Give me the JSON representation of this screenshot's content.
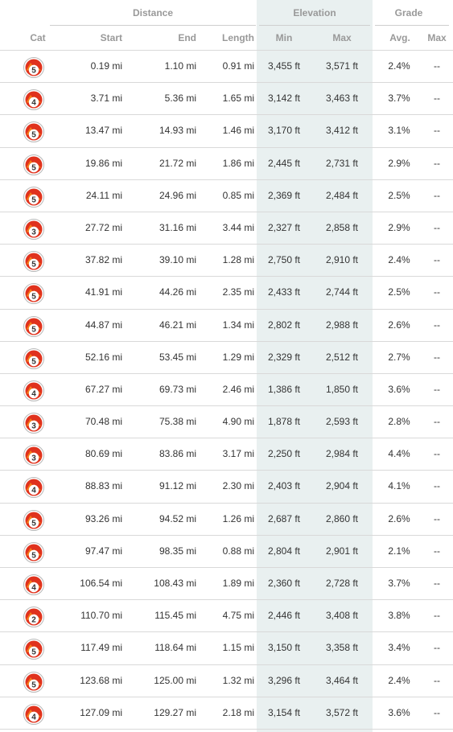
{
  "groups": {
    "distance": "Distance",
    "elevation": "Elevation",
    "grade": "Grade"
  },
  "columns": {
    "cat": "Cat",
    "start": "Start",
    "end": "End",
    "length": "Length",
    "min": "Min",
    "max": "Max",
    "avg": "Avg.",
    "grade_max": "Max"
  },
  "colors": {
    "elevation_bg": "#e9f0f0",
    "badge_red": "#e0321d",
    "badge_orange": "#f47a17"
  },
  "rows": [
    {
      "cat": "5",
      "start": "0.19 mi",
      "end": "1.10 mi",
      "length": "0.91 mi",
      "min": "3,455 ft",
      "max": "3,571 ft",
      "avg": "2.4%",
      "gmax": "--"
    },
    {
      "cat": "4",
      "start": "3.71 mi",
      "end": "5.36 mi",
      "length": "1.65 mi",
      "min": "3,142 ft",
      "max": "3,463 ft",
      "avg": "3.7%",
      "gmax": "--"
    },
    {
      "cat": "5",
      "start": "13.47 mi",
      "end": "14.93 mi",
      "length": "1.46 mi",
      "min": "3,170 ft",
      "max": "3,412 ft",
      "avg": "3.1%",
      "gmax": "--"
    },
    {
      "cat": "5",
      "start": "19.86 mi",
      "end": "21.72 mi",
      "length": "1.86 mi",
      "min": "2,445 ft",
      "max": "2,731 ft",
      "avg": "2.9%",
      "gmax": "--"
    },
    {
      "cat": "5",
      "start": "24.11 mi",
      "end": "24.96 mi",
      "length": "0.85 mi",
      "min": "2,369 ft",
      "max": "2,484 ft",
      "avg": "2.5%",
      "gmax": "--"
    },
    {
      "cat": "3",
      "start": "27.72 mi",
      "end": "31.16 mi",
      "length": "3.44 mi",
      "min": "2,327 ft",
      "max": "2,858 ft",
      "avg": "2.9%",
      "gmax": "--"
    },
    {
      "cat": "5",
      "start": "37.82 mi",
      "end": "39.10 mi",
      "length": "1.28 mi",
      "min": "2,750 ft",
      "max": "2,910 ft",
      "avg": "2.4%",
      "gmax": "--"
    },
    {
      "cat": "5",
      "start": "41.91 mi",
      "end": "44.26 mi",
      "length": "2.35 mi",
      "min": "2,433 ft",
      "max": "2,744 ft",
      "avg": "2.5%",
      "gmax": "--"
    },
    {
      "cat": "5",
      "start": "44.87 mi",
      "end": "46.21 mi",
      "length": "1.34 mi",
      "min": "2,802 ft",
      "max": "2,988 ft",
      "avg": "2.6%",
      "gmax": "--"
    },
    {
      "cat": "5",
      "start": "52.16 mi",
      "end": "53.45 mi",
      "length": "1.29 mi",
      "min": "2,329 ft",
      "max": "2,512 ft",
      "avg": "2.7%",
      "gmax": "--"
    },
    {
      "cat": "4",
      "start": "67.27 mi",
      "end": "69.73 mi",
      "length": "2.46 mi",
      "min": "1,386 ft",
      "max": "1,850 ft",
      "avg": "3.6%",
      "gmax": "--"
    },
    {
      "cat": "3",
      "start": "70.48 mi",
      "end": "75.38 mi",
      "length": "4.90 mi",
      "min": "1,878 ft",
      "max": "2,593 ft",
      "avg": "2.8%",
      "gmax": "--"
    },
    {
      "cat": "3",
      "start": "80.69 mi",
      "end": "83.86 mi",
      "length": "3.17 mi",
      "min": "2,250 ft",
      "max": "2,984 ft",
      "avg": "4.4%",
      "gmax": "--"
    },
    {
      "cat": "4",
      "start": "88.83 mi",
      "end": "91.12 mi",
      "length": "2.30 mi",
      "min": "2,403 ft",
      "max": "2,904 ft",
      "avg": "4.1%",
      "gmax": "--"
    },
    {
      "cat": "5",
      "start": "93.26 mi",
      "end": "94.52 mi",
      "length": "1.26 mi",
      "min": "2,687 ft",
      "max": "2,860 ft",
      "avg": "2.6%",
      "gmax": "--"
    },
    {
      "cat": "5",
      "start": "97.47 mi",
      "end": "98.35 mi",
      "length": "0.88 mi",
      "min": "2,804 ft",
      "max": "2,901 ft",
      "avg": "2.1%",
      "gmax": "--"
    },
    {
      "cat": "4",
      "start": "106.54 mi",
      "end": "108.43 mi",
      "length": "1.89 mi",
      "min": "2,360 ft",
      "max": "2,728 ft",
      "avg": "3.7%",
      "gmax": "--"
    },
    {
      "cat": "2",
      "start": "110.70 mi",
      "end": "115.45 mi",
      "length": "4.75 mi",
      "min": "2,446 ft",
      "max": "3,408 ft",
      "avg": "3.8%",
      "gmax": "--"
    },
    {
      "cat": "5",
      "start": "117.49 mi",
      "end": "118.64 mi",
      "length": "1.15 mi",
      "min": "3,150 ft",
      "max": "3,358 ft",
      "avg": "3.4%",
      "gmax": "--"
    },
    {
      "cat": "5",
      "start": "123.68 mi",
      "end": "125.00 mi",
      "length": "1.32 mi",
      "min": "3,296 ft",
      "max": "3,464 ft",
      "avg": "2.4%",
      "gmax": "--"
    },
    {
      "cat": "4",
      "start": "127.09 mi",
      "end": "129.27 mi",
      "length": "2.18 mi",
      "min": "3,154 ft",
      "max": "3,572 ft",
      "avg": "3.6%",
      "gmax": "--"
    }
  ]
}
